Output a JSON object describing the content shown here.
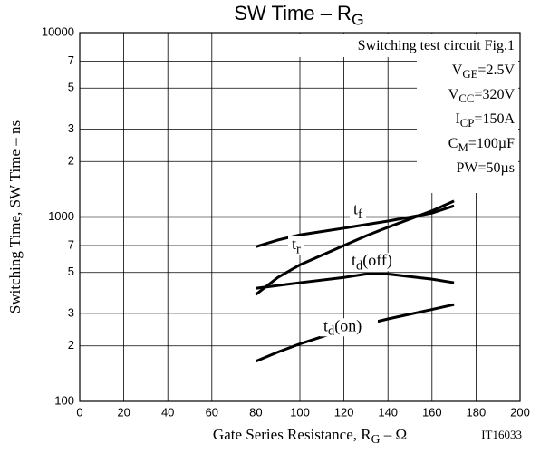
{
  "chart_data": {
    "type": "line",
    "title": [
      "SW Time  –  R",
      "G"
    ],
    "x_label": [
      "Gate Series Resistance, R",
      "G",
      " –  Ω"
    ],
    "y_label": "Switching Time, SW Time – ns",
    "code": "IT16033",
    "annotations": [
      [
        "Switching test circuit Fig.1"
      ],
      [
        "V",
        "GE",
        "=2.5V"
      ],
      [
        "V",
        "CC",
        "=320V"
      ],
      [
        "I",
        "CP",
        "=150A"
      ],
      [
        "C",
        "M",
        "=100µF"
      ],
      [
        "PW=50µs"
      ]
    ],
    "log_y": true,
    "grid": true,
    "xlim": [
      0,
      200
    ],
    "xticks": [
      0,
      20,
      40,
      60,
      80,
      100,
      120,
      140,
      160,
      180,
      200
    ],
    "ylim": [
      100,
      10000
    ],
    "yticks": [
      100,
      {
        "value": 200,
        "label": "2"
      },
      {
        "value": 300,
        "label": "3"
      },
      {
        "value": 500,
        "label": "5"
      },
      {
        "value": 700,
        "label": "7"
      },
      1000,
      {
        "value": 2000,
        "label": "2"
      },
      {
        "value": 3000,
        "label": "3"
      },
      {
        "value": 5000,
        "label": "5"
      },
      {
        "value": 7000,
        "label": "7"
      },
      10000
    ],
    "x": [
      80,
      90,
      100,
      120,
      130,
      140,
      160,
      170
    ],
    "series": [
      {
        "label": [
          "t",
          "f"
        ],
        "color": "#000000",
        "values": [
          690,
          750,
          800,
          870,
          910,
          950,
          1050,
          1150
        ]
      },
      {
        "label": [
          "t",
          "r"
        ],
        "color": "#000000",
        "values": [
          380,
          470,
          550,
          700,
          790,
          880,
          1080,
          1220
        ]
      },
      {
        "label": [
          "t",
          "d",
          "(off)"
        ],
        "color": "#000000",
        "values": [
          410,
          425,
          440,
          470,
          490,
          490,
          460,
          440
        ]
      },
      {
        "label": [
          "t",
          "d",
          "(on)"
        ],
        "color": "#000000",
        "values": [
          165,
          185,
          205,
          245,
          262,
          280,
          315,
          335
        ]
      }
    ]
  }
}
